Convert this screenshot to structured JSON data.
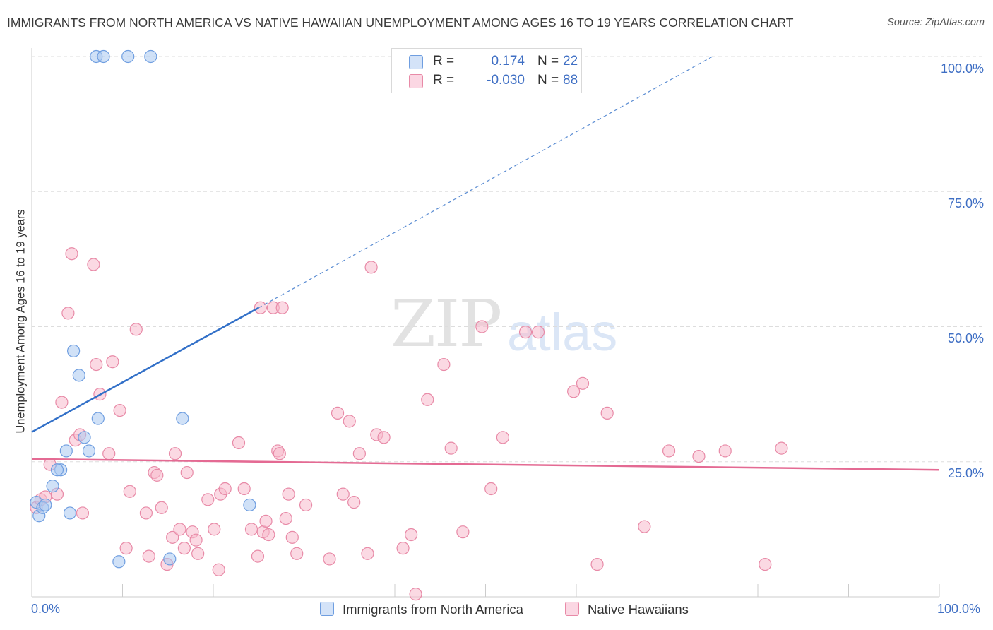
{
  "title": "IMMIGRANTS FROM NORTH AMERICA VS NATIVE HAWAIIAN UNEMPLOYMENT AMONG AGES 16 TO 19 YEARS CORRELATION CHART",
  "source": "Source: ZipAtlas.com",
  "watermark": {
    "zip": "ZIP",
    "atlas": "atlas"
  },
  "legend": {
    "rows": [
      {
        "r_label": "R =",
        "r_value": "0.174",
        "n_label": "N =",
        "n_value": "22",
        "color": "#aac8f0"
      },
      {
        "r_label": "R =",
        "r_value": "-0.030",
        "n_label": "N =",
        "n_value": "88",
        "color": "#f7b9cc"
      }
    ]
  },
  "bottom_legend": {
    "series1": "Immigrants from North America",
    "series2": "Native Hawaiians"
  },
  "axis": {
    "ylabel": "Unemployment Among Ages 16 to 19 years",
    "x_ticks": [
      "0.0%",
      "100.0%"
    ],
    "y_ticks": [
      "100.0%",
      "75.0%",
      "50.0%",
      "25.0%"
    ]
  },
  "colors": {
    "blue_fill": "#aac8f0",
    "blue_stroke": "#6f9ee0",
    "blue_line": "#3270c8",
    "pink_fill": "#f7b9cc",
    "pink_stroke": "#e88aa7",
    "pink_line": "#e46a93",
    "tick_text": "#3f6fc4",
    "grid": "#dddddd"
  },
  "chart_data": {
    "type": "scatter",
    "xlim": [
      0,
      100
    ],
    "ylim": [
      0,
      100
    ],
    "grid": true,
    "series": [
      {
        "name": "Immigrants from North America",
        "points": [
          [
            0.5,
            17.5
          ],
          [
            0.8,
            15
          ],
          [
            1.2,
            16.5
          ],
          [
            1.5,
            17
          ],
          [
            2.3,
            20.5
          ],
          [
            3.2,
            23.5
          ],
          [
            3.8,
            27
          ],
          [
            4.2,
            15.5
          ],
          [
            4.6,
            45.5
          ],
          [
            5.2,
            41
          ],
          [
            5.8,
            29.5
          ],
          [
            6.3,
            27
          ],
          [
            7.3,
            33
          ],
          [
            7.1,
            100
          ],
          [
            7.9,
            100
          ],
          [
            9.6,
            6.5
          ],
          [
            10.6,
            100
          ],
          [
            13.1,
            100
          ],
          [
            15.2,
            7
          ],
          [
            16.6,
            33
          ],
          [
            24,
            17
          ],
          [
            2.8,
            23.5
          ]
        ],
        "trend": {
          "x": [
            0,
            25
          ],
          "y": [
            30.5,
            53.5
          ],
          "extended_to": [
            75,
            100
          ]
        }
      },
      {
        "name": "Native Hawaiians",
        "points": [
          [
            0.5,
            16.5
          ],
          [
            1.0,
            18
          ],
          [
            1.5,
            18.5
          ],
          [
            2.0,
            24.5
          ],
          [
            2.8,
            19
          ],
          [
            3.3,
            36
          ],
          [
            4.0,
            52.5
          ],
          [
            4.4,
            63.5
          ],
          [
            4.8,
            29
          ],
          [
            5.3,
            30
          ],
          [
            5.6,
            15.5
          ],
          [
            6.8,
            61.5
          ],
          [
            7.1,
            43
          ],
          [
            7.5,
            37.5
          ],
          [
            8.5,
            26.5
          ],
          [
            8.9,
            43.5
          ],
          [
            9.7,
            34.5
          ],
          [
            10.4,
            9
          ],
          [
            10.8,
            19.5
          ],
          [
            11.5,
            49.5
          ],
          [
            12.6,
            15.5
          ],
          [
            12.9,
            7.5
          ],
          [
            13.5,
            23
          ],
          [
            13.8,
            22.5
          ],
          [
            14.3,
            16.5
          ],
          [
            14.9,
            6
          ],
          [
            15.5,
            11
          ],
          [
            15.8,
            26.5
          ],
          [
            16.3,
            12.5
          ],
          [
            16.8,
            9
          ],
          [
            17.1,
            23
          ],
          [
            17.7,
            12
          ],
          [
            18.3,
            8
          ],
          [
            18.1,
            10.5
          ],
          [
            19.4,
            18
          ],
          [
            20.1,
            12.5
          ],
          [
            20.6,
            5
          ],
          [
            20.8,
            19
          ],
          [
            21.3,
            20
          ],
          [
            22.8,
            28.5
          ],
          [
            23.4,
            20
          ],
          [
            24.2,
            12.5
          ],
          [
            24.9,
            7.5
          ],
          [
            25.2,
            53.5
          ],
          [
            25.5,
            12
          ],
          [
            25.8,
            14
          ],
          [
            26.1,
            11.5
          ],
          [
            26.6,
            53.5
          ],
          [
            27.1,
            27
          ],
          [
            27.3,
            26.5
          ],
          [
            27.6,
            53.5
          ],
          [
            28.0,
            14.5
          ],
          [
            28.3,
            19
          ],
          [
            28.7,
            11
          ],
          [
            29.2,
            8
          ],
          [
            30.2,
            17
          ],
          [
            32.8,
            7
          ],
          [
            33.7,
            34
          ],
          [
            34.3,
            19
          ],
          [
            35,
            32.5
          ],
          [
            35.5,
            17.5
          ],
          [
            36.1,
            26.5
          ],
          [
            37,
            8
          ],
          [
            37.4,
            61
          ],
          [
            38,
            30
          ],
          [
            38.8,
            29.5
          ],
          [
            40.9,
            9
          ],
          [
            41.8,
            11.5
          ],
          [
            42.3,
            0.5
          ],
          [
            43.6,
            36.5
          ],
          [
            45.4,
            43
          ],
          [
            46.2,
            27.5
          ],
          [
            47.5,
            12
          ],
          [
            49.6,
            50
          ],
          [
            50.6,
            20
          ],
          [
            51.9,
            29.5
          ],
          [
            54.4,
            49
          ],
          [
            55.8,
            49
          ],
          [
            59.7,
            38
          ],
          [
            60.7,
            39.5
          ],
          [
            62.3,
            6
          ],
          [
            63.4,
            34
          ],
          [
            67.5,
            13
          ],
          [
            70.2,
            27
          ],
          [
            73.5,
            26
          ],
          [
            76.4,
            27
          ],
          [
            80.8,
            6
          ],
          [
            82.6,
            27.5
          ]
        ],
        "trend": {
          "x": [
            0,
            100
          ],
          "y": [
            25.5,
            23.5
          ]
        }
      }
    ]
  }
}
